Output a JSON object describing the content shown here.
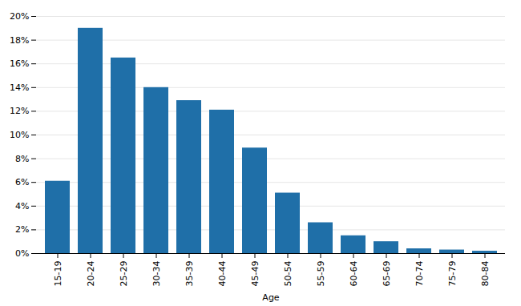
{
  "chart_data": {
    "type": "bar",
    "xlabel": "Age",
    "categories": [
      "15-19",
      "20-24",
      "25-29",
      "30-34",
      "35-39",
      "40-44",
      "45-49",
      "50-54",
      "55-59",
      "60-64",
      "65-69",
      "70-74",
      "75-79",
      "80-84"
    ],
    "values": [
      0.061,
      0.19,
      0.165,
      0.14,
      0.129,
      0.121,
      0.089,
      0.051,
      0.026,
      0.015,
      0.01,
      0.004,
      0.003,
      0.002
    ],
    "color": "#1F6FA8",
    "ylim": [
      0,
      0.2
    ],
    "yticks": [
      {
        "value": 0,
        "label": "0%"
      },
      {
        "value": 0.02,
        "label": "2%"
      },
      {
        "value": 0.04,
        "label": "4%"
      },
      {
        "value": 0.06,
        "label": "6%"
      },
      {
        "value": 0.08,
        "label": "8%"
      },
      {
        "value": 0.1,
        "label": "10%"
      },
      {
        "value": 0.12,
        "label": "12%"
      },
      {
        "value": 0.14,
        "label": "14%"
      },
      {
        "value": 0.16,
        "label": "16%"
      },
      {
        "value": 0.18,
        "label": "18%"
      },
      {
        "value": 0.2,
        "label": "20%"
      }
    ],
    "grid": true
  }
}
